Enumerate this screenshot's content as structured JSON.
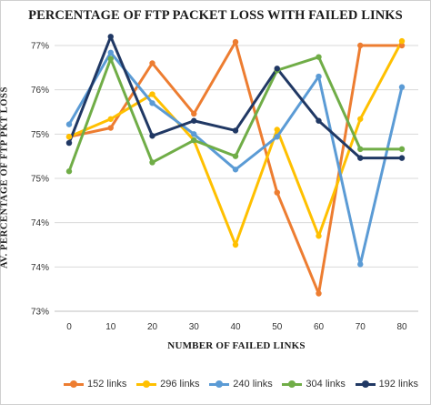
{
  "chart_data": {
    "type": "line",
    "title": "PERCENTAGE OF FTP PACKET LOSS WITH  FAILED LINKS",
    "xlabel": "NUMBER OF FAILED LINKS",
    "ylabel": "AV. PERCENTAGE OF FTP PKT LOSS",
    "x": [
      0,
      10,
      20,
      30,
      40,
      50,
      60,
      70,
      80
    ],
    "y_tick_labels": [
      "73%",
      "74%",
      "74%",
      "75%",
      "75%",
      "76%",
      "77%"
    ],
    "ylim": [
      73.0,
      76.0
    ],
    "grid": true,
    "legend_position": "bottom",
    "series": [
      {
        "name": "152 links",
        "color": "#ed7d31",
        "values": [
          74.97,
          75.07,
          75.8,
          75.23,
          76.04,
          74.34,
          73.2,
          76.0,
          76.0
        ]
      },
      {
        "name": "296 links",
        "color": "#ffc000",
        "values": [
          74.97,
          75.17,
          75.45,
          74.93,
          73.75,
          75.05,
          73.85,
          75.17,
          76.05
        ]
      },
      {
        "name": "240 links",
        "color": "#5b9bd5",
        "values": [
          75.11,
          75.92,
          75.35,
          75.0,
          74.6,
          74.97,
          75.65,
          73.53,
          75.53
        ]
      },
      {
        "name": "304 links",
        "color": "#70ad47",
        "values": [
          74.58,
          75.85,
          74.68,
          74.93,
          74.75,
          75.72,
          75.87,
          74.83,
          74.83
        ]
      },
      {
        "name": "192 links",
        "color": "#203864",
        "values": [
          74.9,
          76.1,
          74.98,
          75.15,
          75.04,
          75.74,
          75.15,
          74.73,
          74.73
        ]
      }
    ]
  }
}
